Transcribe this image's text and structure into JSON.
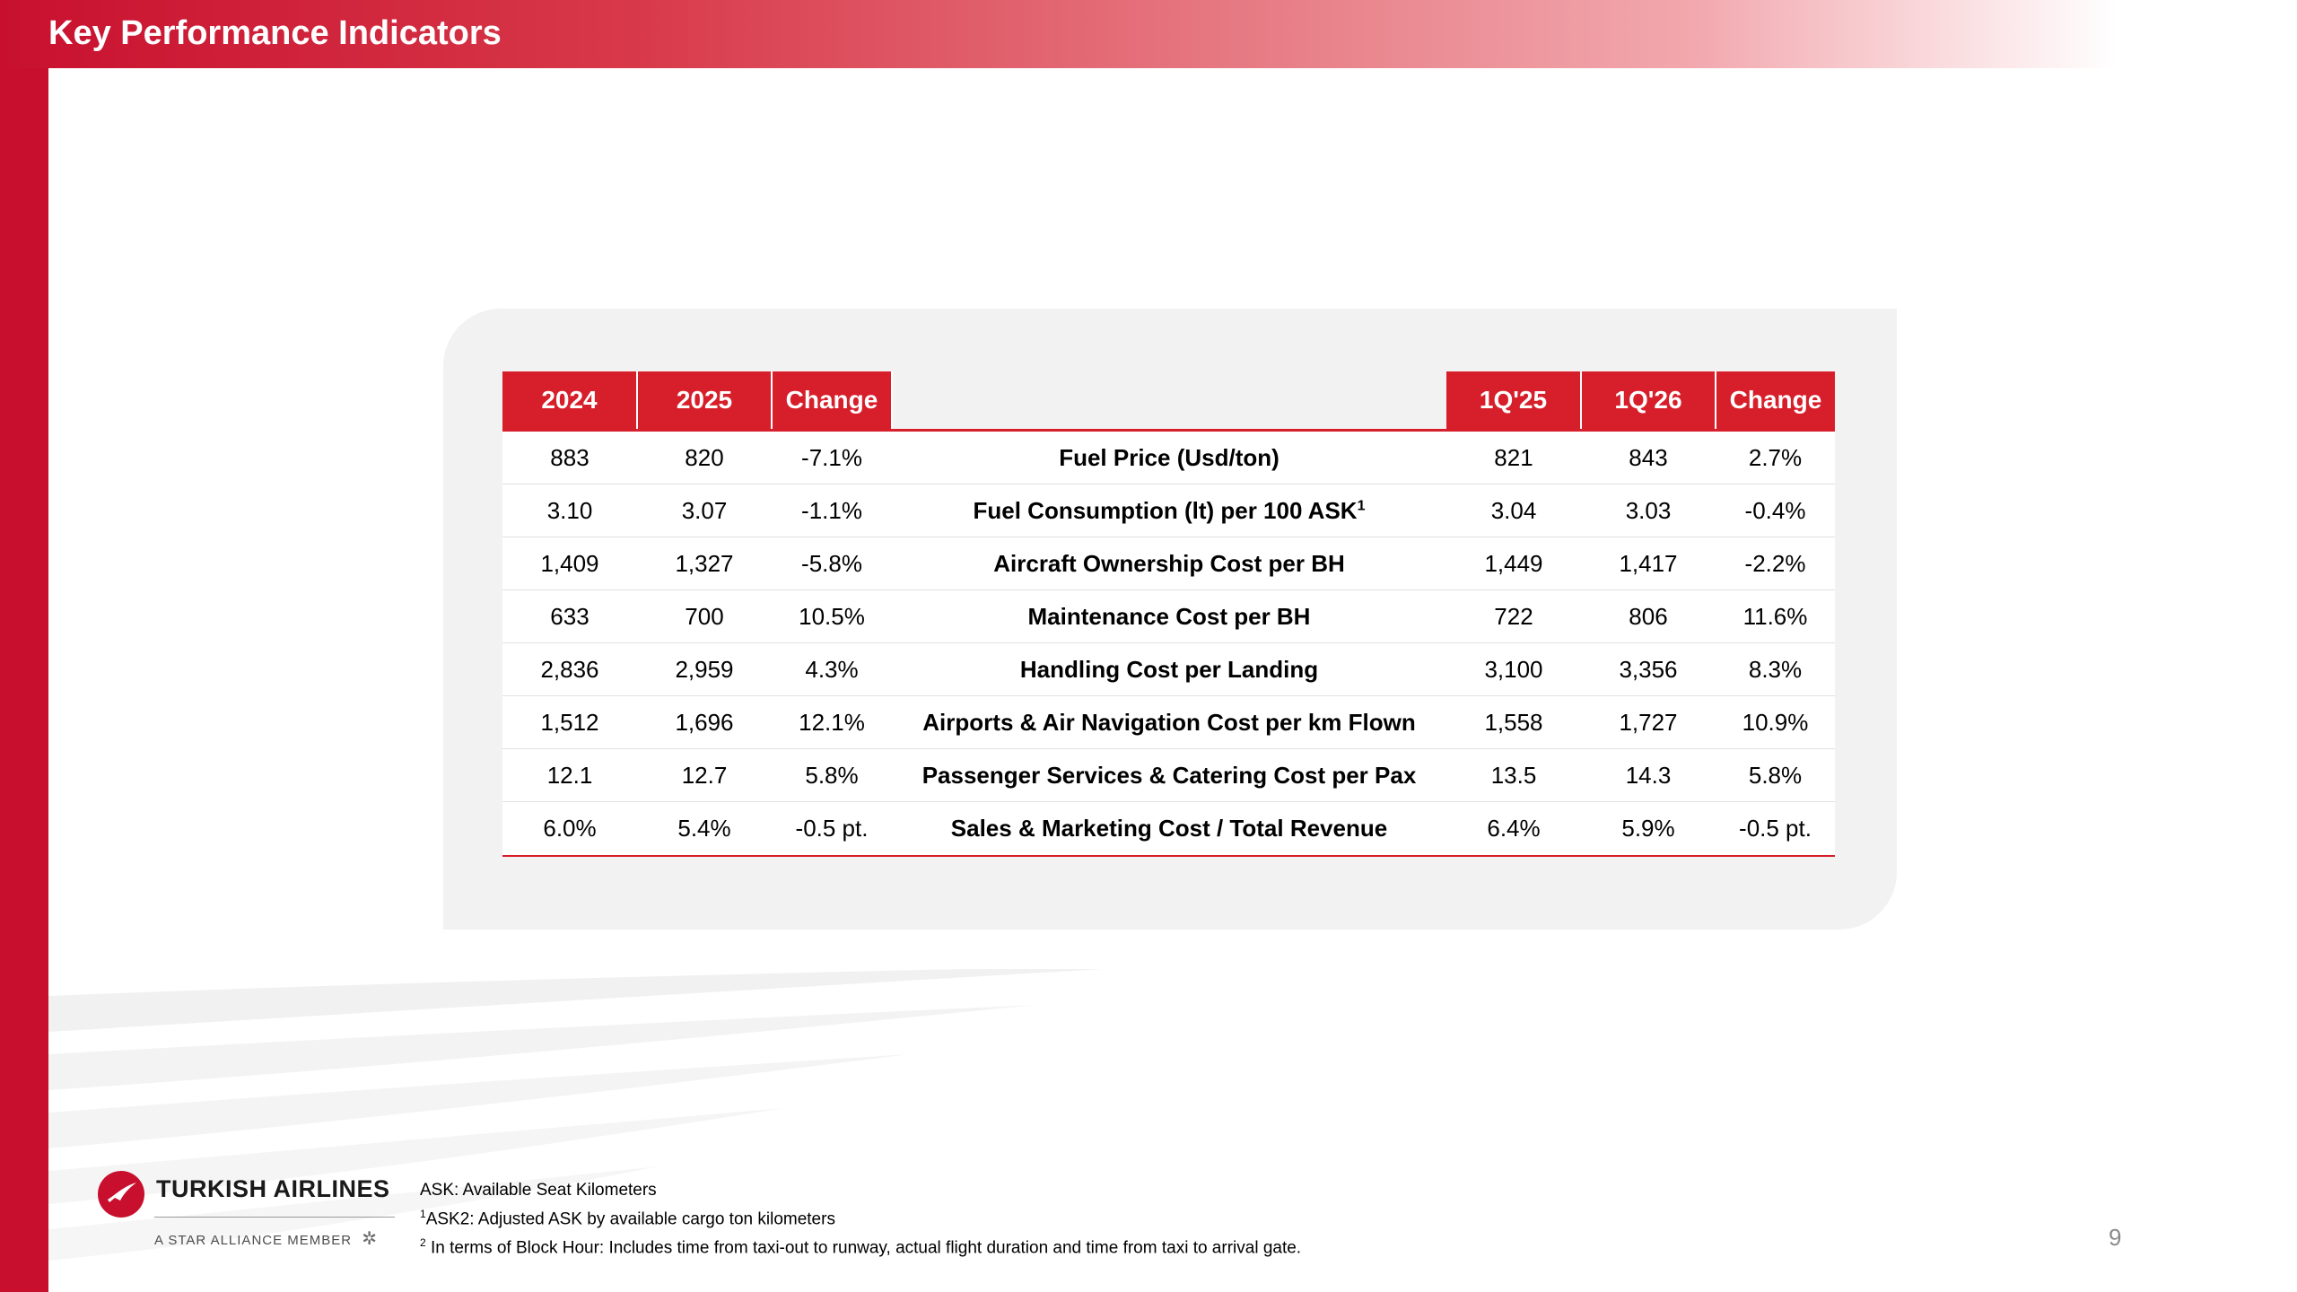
{
  "header": {
    "title": "Key Performance Indicators"
  },
  "table": {
    "headers_left": [
      "2024",
      "2025",
      "Change"
    ],
    "headers_right": [
      "1Q'25",
      "1Q'26",
      "Change"
    ],
    "rows": [
      {
        "y2024": "883",
        "y2025": "820",
        "change_annual": "-7.1%",
        "metric": "Fuel Price (Usd/ton)",
        "metric_sup": "",
        "q125": "821",
        "q126": "843",
        "change_quarter": "2.7%"
      },
      {
        "y2024": "3.10",
        "y2025": "3.07",
        "change_annual": "-1.1%",
        "metric": "Fuel Consumption (lt) per 100 ASK",
        "metric_sup": "1",
        "q125": "3.04",
        "q126": "3.03",
        "change_quarter": "-0.4%"
      },
      {
        "y2024": "1,409",
        "y2025": "1,327",
        "change_annual": "-5.8%",
        "metric": "Aircraft Ownership Cost per BH",
        "metric_sup": "",
        "q125": "1,449",
        "q126": "1,417",
        "change_quarter": "-2.2%"
      },
      {
        "y2024": "633",
        "y2025": "700",
        "change_annual": "10.5%",
        "metric": "Maintenance Cost per BH",
        "metric_sup": "",
        "q125": "722",
        "q126": "806",
        "change_quarter": "11.6%"
      },
      {
        "y2024": "2,836",
        "y2025": "2,959",
        "change_annual": "4.3%",
        "metric": "Handling Cost per Landing",
        "metric_sup": "",
        "q125": "3,100",
        "q126": "3,356",
        "change_quarter": "8.3%"
      },
      {
        "y2024": "1,512",
        "y2025": "1,696",
        "change_annual": "12.1%",
        "metric": "Airports & Air Navigation Cost per km Flown",
        "metric_sup": "",
        "q125": "1,558",
        "q126": "1,727",
        "change_quarter": "10.9%"
      },
      {
        "y2024": "12.1",
        "y2025": "12.7",
        "change_annual": "5.8%",
        "metric": "Passenger Services & Catering Cost per Pax",
        "metric_sup": "",
        "q125": "13.5",
        "q126": "14.3",
        "change_quarter": "5.8%"
      },
      {
        "y2024": "6.0%",
        "y2025": "5.4%",
        "change_annual": "-0.5 pt.",
        "metric": "Sales & Marketing Cost / Total Revenue",
        "metric_sup": "",
        "q125": "6.4%",
        "q126": "5.9%",
        "change_quarter": "-0.5 pt."
      }
    ]
  },
  "logo": {
    "name": "TURKISH AIRLINES",
    "tagline": "A STAR ALLIANCE MEMBER"
  },
  "footnotes": {
    "line1": "ASK: Available Seat Kilometers",
    "line2_sup": "1",
    "line2": "ASK2: Adjusted ASK by available cargo ton kilometers",
    "line3_sup": "2",
    "line3": " In terms of Block Hour: Includes time from taxi-out to runway, actual flight duration and time from taxi to arrival gate."
  },
  "page_number": "9",
  "colors": {
    "brand_red": "#c8102e",
    "header_red": "#d71f2b",
    "panel_grey": "#f2f2f2"
  }
}
